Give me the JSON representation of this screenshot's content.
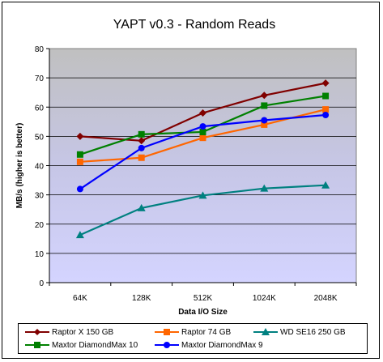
{
  "chart_data": {
    "type": "line",
    "title": "YAPT v0.3 - Random Reads",
    "xlabel": "Data I/O Size",
    "ylabel": "MB/s (higher is better)",
    "categories": [
      "64K",
      "128K",
      "512K",
      "1024K",
      "2048K"
    ],
    "ylim": [
      0,
      80
    ],
    "yticks": [
      "0",
      "10",
      "20",
      "30",
      "40",
      "50",
      "60",
      "70",
      "80"
    ],
    "grid": true,
    "legend_position": "bottom",
    "series": [
      {
        "name": "Raptor X 150 GB",
        "color": "#800000",
        "marker": "diamond",
        "values": [
          50.0,
          48.5,
          58.0,
          64.0,
          68.2
        ]
      },
      {
        "name": "Raptor 74 GB",
        "color": "#ff6600",
        "marker": "square",
        "values": [
          41.3,
          42.7,
          49.5,
          54.0,
          59.2
        ]
      },
      {
        "name": "WD SE16 250 GB",
        "color": "#008080",
        "marker": "triangle",
        "values": [
          16.3,
          25.5,
          29.8,
          32.2,
          33.3
        ]
      },
      {
        "name": "Maxtor DiamondMax 10",
        "color": "#008000",
        "marker": "square",
        "values": [
          43.8,
          50.7,
          51.5,
          60.5,
          63.8
        ]
      },
      {
        "name": "Maxtor DiamondMax 9",
        "color": "#0000ff",
        "marker": "circle",
        "values": [
          32.0,
          46.0,
          53.4,
          55.5,
          57.3
        ]
      }
    ]
  }
}
